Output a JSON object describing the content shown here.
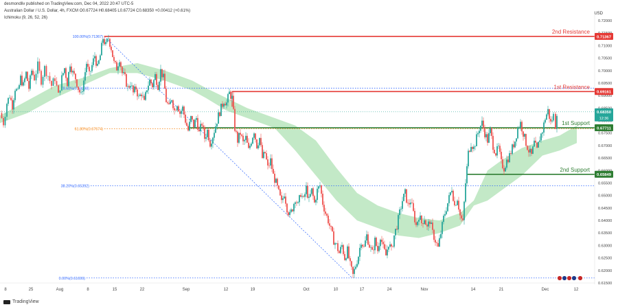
{
  "header": {
    "publisher": "desmondliv published on TradingView.com, Dec 04, 2022 20:47 UTC-5",
    "symbol_line": "Australian Dollar / U.S. Dollar, 4h, FXCM  O0.67724  H0.68405  L0.67724  C0.68350  +0.00412 (+0.61%)",
    "indicator": "Ichimoku (9, 26, 52, 26)"
  },
  "currency": "USD",
  "brand": "TradingView",
  "colors": {
    "resistance": "#e53935",
    "support": "#2e7d32",
    "fib_blue": "#2962ff",
    "fib_orange": "#f57c00",
    "candle_up": "#26a69a",
    "candle_down": "#ef5350",
    "cloud_bull": "#b9e5bd",
    "cloud_bear": "#f8c6c6",
    "price": "#26a69a"
  },
  "chart_data": {
    "type": "candlestick",
    "ylim": [
      0.615,
      0.72
    ],
    "y_ticks": [
      "0.72000",
      "0.71500",
      "0.71000",
      "0.70500",
      "0.70000",
      "0.69500",
      "0.69000",
      "0.68500",
      "0.68000",
      "0.67500",
      "0.67000",
      "0.66500",
      "0.66000",
      "0.65500",
      "0.65000",
      "0.64500",
      "0.64000",
      "0.63500",
      "0.63000",
      "0.62500",
      "0.62000",
      "0.61500"
    ],
    "x_ticks": [
      "8",
      "25",
      "Aug",
      "8",
      "15",
      "22",
      "Sep",
      "12",
      "19",
      "Oct",
      "10",
      "17",
      "24",
      "Nov",
      "14",
      "21",
      "Dec",
      "12"
    ],
    "current_price": {
      "value": 0.6835,
      "label": "0.68350",
      "countdown": "12:36"
    },
    "levels": [
      {
        "name": "2nd Resistance",
        "value": 0.71367,
        "label": "0.71367",
        "type": "resistance"
      },
      {
        "name": "1st Resistance",
        "value": 0.69161,
        "label": "0.69161",
        "type": "resistance"
      },
      {
        "name": "1st Support",
        "value": 0.67711,
        "label": "0.67711",
        "type": "support"
      },
      {
        "name": "2nd Support",
        "value": 0.65849,
        "label": "0.65849",
        "type": "support"
      }
    ],
    "fib_levels": [
      {
        "label": "100.00%(0.71367)",
        "value": 0.71367,
        "color": "blue"
      },
      {
        "label": "78.60%(0.69298)",
        "value": 0.69298,
        "color": "blue"
      },
      {
        "label": "61.80%(0.67674)",
        "value": 0.67674,
        "color": "orange"
      },
      {
        "label": "38.20%(0.65392)",
        "value": 0.65392,
        "color": "blue"
      },
      {
        "label": "0.00%(0.61699)",
        "value": 0.61699,
        "color": "blue"
      }
    ],
    "price_path": [
      [
        0,
        0.683
      ],
      [
        5,
        0.679
      ],
      [
        10,
        0.687
      ],
      [
        14,
        0.69
      ],
      [
        18,
        0.686
      ],
      [
        22,
        0.693
      ],
      [
        26,
        0.691
      ],
      [
        30,
        0.697
      ],
      [
        34,
        0.694
      ],
      [
        38,
        0.699
      ],
      [
        42,
        0.693
      ],
      [
        46,
        0.7
      ],
      [
        50,
        0.697
      ],
      [
        55,
        0.702
      ],
      [
        60,
        0.696
      ],
      [
        65,
        0.701
      ],
      [
        70,
        0.698
      ],
      [
        75,
        0.694
      ],
      [
        80,
        0.697
      ],
      [
        85,
        0.69
      ],
      [
        90,
        0.697
      ],
      [
        94,
        0.701
      ],
      [
        98,
        0.695
      ],
      [
        102,
        0.703
      ],
      [
        106,
        0.699
      ],
      [
        110,
        0.697
      ],
      [
        114,
        0.693
      ],
      [
        118,
        0.69
      ],
      [
        122,
        0.696
      ],
      [
        126,
        0.703
      ],
      [
        130,
        0.698
      ],
      [
        134,
        0.702
      ],
      [
        138,
        0.706
      ],
      [
        142,
        0.701
      ],
      [
        146,
        0.706
      ],
      [
        150,
        0.713
      ],
      [
        154,
        0.71
      ],
      [
        158,
        0.713
      ],
      [
        162,
        0.709
      ],
      [
        166,
        0.703
      ],
      [
        170,
        0.701
      ],
      [
        174,
        0.705
      ],
      [
        178,
        0.699
      ],
      [
        182,
        0.697
      ],
      [
        186,
        0.693
      ],
      [
        190,
        0.695
      ],
      [
        194,
        0.691
      ],
      [
        198,
        0.693
      ],
      [
        202,
        0.689
      ],
      [
        206,
        0.691
      ],
      [
        210,
        0.687
      ],
      [
        214,
        0.693
      ],
      [
        218,
        0.696
      ],
      [
        222,
        0.694
      ],
      [
        226,
        0.698
      ],
      [
        230,
        0.694
      ],
      [
        234,
        0.7
      ],
      [
        238,
        0.697
      ],
      [
        242,
        0.688
      ],
      [
        246,
        0.685
      ],
      [
        250,
        0.689
      ],
      [
        254,
        0.684
      ],
      [
        258,
        0.687
      ],
      [
        262,
        0.683
      ],
      [
        266,
        0.685
      ],
      [
        270,
        0.68
      ],
      [
        274,
        0.676
      ],
      [
        278,
        0.681
      ],
      [
        282,
        0.678
      ],
      [
        286,
        0.681
      ],
      [
        290,
        0.675
      ],
      [
        294,
        0.679
      ],
      [
        298,
        0.673
      ],
      [
        302,
        0.676
      ],
      [
        306,
        0.671
      ],
      [
        310,
        0.674
      ],
      [
        314,
        0.678
      ],
      [
        318,
        0.682
      ],
      [
        322,
        0.685
      ],
      [
        326,
        0.688
      ],
      [
        330,
        0.687
      ],
      [
        334,
        0.691
      ],
      [
        338,
        0.689
      ],
      [
        342,
        0.677
      ],
      [
        346,
        0.672
      ],
      [
        350,
        0.675
      ],
      [
        354,
        0.671
      ],
      [
        358,
        0.673
      ],
      [
        362,
        0.668
      ],
      [
        366,
        0.672
      ],
      [
        370,
        0.676
      ],
      [
        374,
        0.67
      ],
      [
        378,
        0.673
      ],
      [
        382,
        0.665
      ],
      [
        386,
        0.667
      ],
      [
        390,
        0.661
      ],
      [
        394,
        0.664
      ],
      [
        398,
        0.658
      ],
      [
        402,
        0.655
      ],
      [
        406,
        0.651
      ],
      [
        410,
        0.647
      ],
      [
        414,
        0.651
      ],
      [
        418,
        0.645
      ],
      [
        422,
        0.642
      ],
      [
        426,
        0.645
      ],
      [
        430,
        0.649
      ],
      [
        434,
        0.646
      ],
      [
        438,
        0.651
      ],
      [
        442,
        0.648
      ],
      [
        446,
        0.653
      ],
      [
        450,
        0.648
      ],
      [
        454,
        0.652
      ],
      [
        458,
        0.647
      ],
      [
        462,
        0.652
      ],
      [
        466,
        0.654
      ],
      [
        470,
        0.647
      ],
      [
        474,
        0.643
      ],
      [
        478,
        0.64
      ],
      [
        482,
        0.636
      ],
      [
        486,
        0.632
      ],
      [
        490,
        0.63
      ],
      [
        494,
        0.627
      ],
      [
        498,
        0.63
      ],
      [
        502,
        0.625
      ],
      [
        506,
        0.628
      ],
      [
        510,
        0.622
      ],
      [
        514,
        0.618
      ],
      [
        518,
        0.622
      ],
      [
        522,
        0.626
      ],
      [
        526,
        0.632
      ],
      [
        530,
        0.629
      ],
      [
        534,
        0.634
      ],
      [
        538,
        0.63
      ],
      [
        542,
        0.627
      ],
      [
        546,
        0.632
      ],
      [
        550,
        0.628
      ],
      [
        554,
        0.634
      ],
      [
        558,
        0.629
      ],
      [
        562,
        0.626
      ],
      [
        566,
        0.631
      ],
      [
        570,
        0.628
      ],
      [
        574,
        0.634
      ],
      [
        578,
        0.638
      ],
      [
        582,
        0.643
      ],
      [
        586,
        0.648
      ],
      [
        590,
        0.651
      ],
      [
        594,
        0.646
      ],
      [
        598,
        0.648
      ],
      [
        602,
        0.643
      ],
      [
        606,
        0.638
      ],
      [
        610,
        0.642
      ],
      [
        614,
        0.639
      ],
      [
        618,
        0.641
      ],
      [
        622,
        0.637
      ],
      [
        626,
        0.64
      ],
      [
        630,
        0.635
      ],
      [
        634,
        0.632
      ],
      [
        638,
        0.629
      ],
      [
        642,
        0.635
      ],
      [
        646,
        0.641
      ],
      [
        650,
        0.645
      ],
      [
        654,
        0.649
      ],
      [
        658,
        0.653
      ],
      [
        662,
        0.646
      ],
      [
        666,
        0.649
      ],
      [
        670,
        0.642
      ],
      [
        674,
        0.639
      ],
      [
        678,
        0.655
      ],
      [
        682,
        0.667
      ],
      [
        686,
        0.671
      ],
      [
        690,
        0.669
      ],
      [
        694,
        0.673
      ],
      [
        698,
        0.677
      ],
      [
        702,
        0.679
      ],
      [
        706,
        0.675
      ],
      [
        710,
        0.672
      ],
      [
        714,
        0.676
      ],
      [
        718,
        0.67
      ],
      [
        722,
        0.667
      ],
      [
        726,
        0.669
      ],
      [
        730,
        0.663
      ],
      [
        734,
        0.661
      ],
      [
        738,
        0.664
      ],
      [
        742,
        0.666
      ],
      [
        746,
        0.669
      ],
      [
        750,
        0.672
      ],
      [
        754,
        0.677
      ],
      [
        758,
        0.679
      ],
      [
        762,
        0.675
      ],
      [
        766,
        0.671
      ],
      [
        770,
        0.668
      ],
      [
        774,
        0.666
      ],
      [
        778,
        0.671
      ],
      [
        782,
        0.668
      ],
      [
        786,
        0.673
      ],
      [
        790,
        0.676
      ],
      [
        794,
        0.681
      ],
      [
        798,
        0.684
      ],
      [
        802,
        0.679
      ],
      [
        806,
        0.682
      ],
      [
        809,
        0.678
      ],
      [
        811,
        0.6835
      ]
    ],
    "cloud": [
      [
        0,
        0.682,
        0.679
      ],
      [
        40,
        0.688,
        0.683
      ],
      [
        80,
        0.694,
        0.689
      ],
      [
        120,
        0.697,
        0.694
      ],
      [
        160,
        0.701,
        0.699
      ],
      [
        200,
        0.703,
        0.699
      ],
      [
        240,
        0.7,
        0.696
      ],
      [
        280,
        0.696,
        0.692
      ],
      [
        300,
        0.693,
        0.689
      ],
      [
        330,
        0.689,
        0.684
      ],
      [
        360,
        0.685,
        0.681
      ],
      [
        400,
        0.681,
        0.677
      ],
      [
        430,
        0.678,
        0.668
      ],
      [
        460,
        0.672,
        0.658
      ],
      [
        490,
        0.661,
        0.648
      ],
      [
        520,
        0.651,
        0.64
      ],
      [
        550,
        0.646,
        0.637
      ],
      [
        580,
        0.643,
        0.634
      ],
      [
        610,
        0.641,
        0.633
      ],
      [
        640,
        0.64,
        0.635
      ],
      [
        670,
        0.643,
        0.638
      ],
      [
        690,
        0.648,
        0.646
      ],
      [
        710,
        0.66,
        0.648
      ],
      [
        730,
        0.664,
        0.652
      ],
      [
        760,
        0.669,
        0.658
      ],
      [
        790,
        0.672,
        0.666
      ],
      [
        815,
        0.674,
        0.668
      ],
      [
        840,
        0.678,
        0.671
      ]
    ]
  }
}
